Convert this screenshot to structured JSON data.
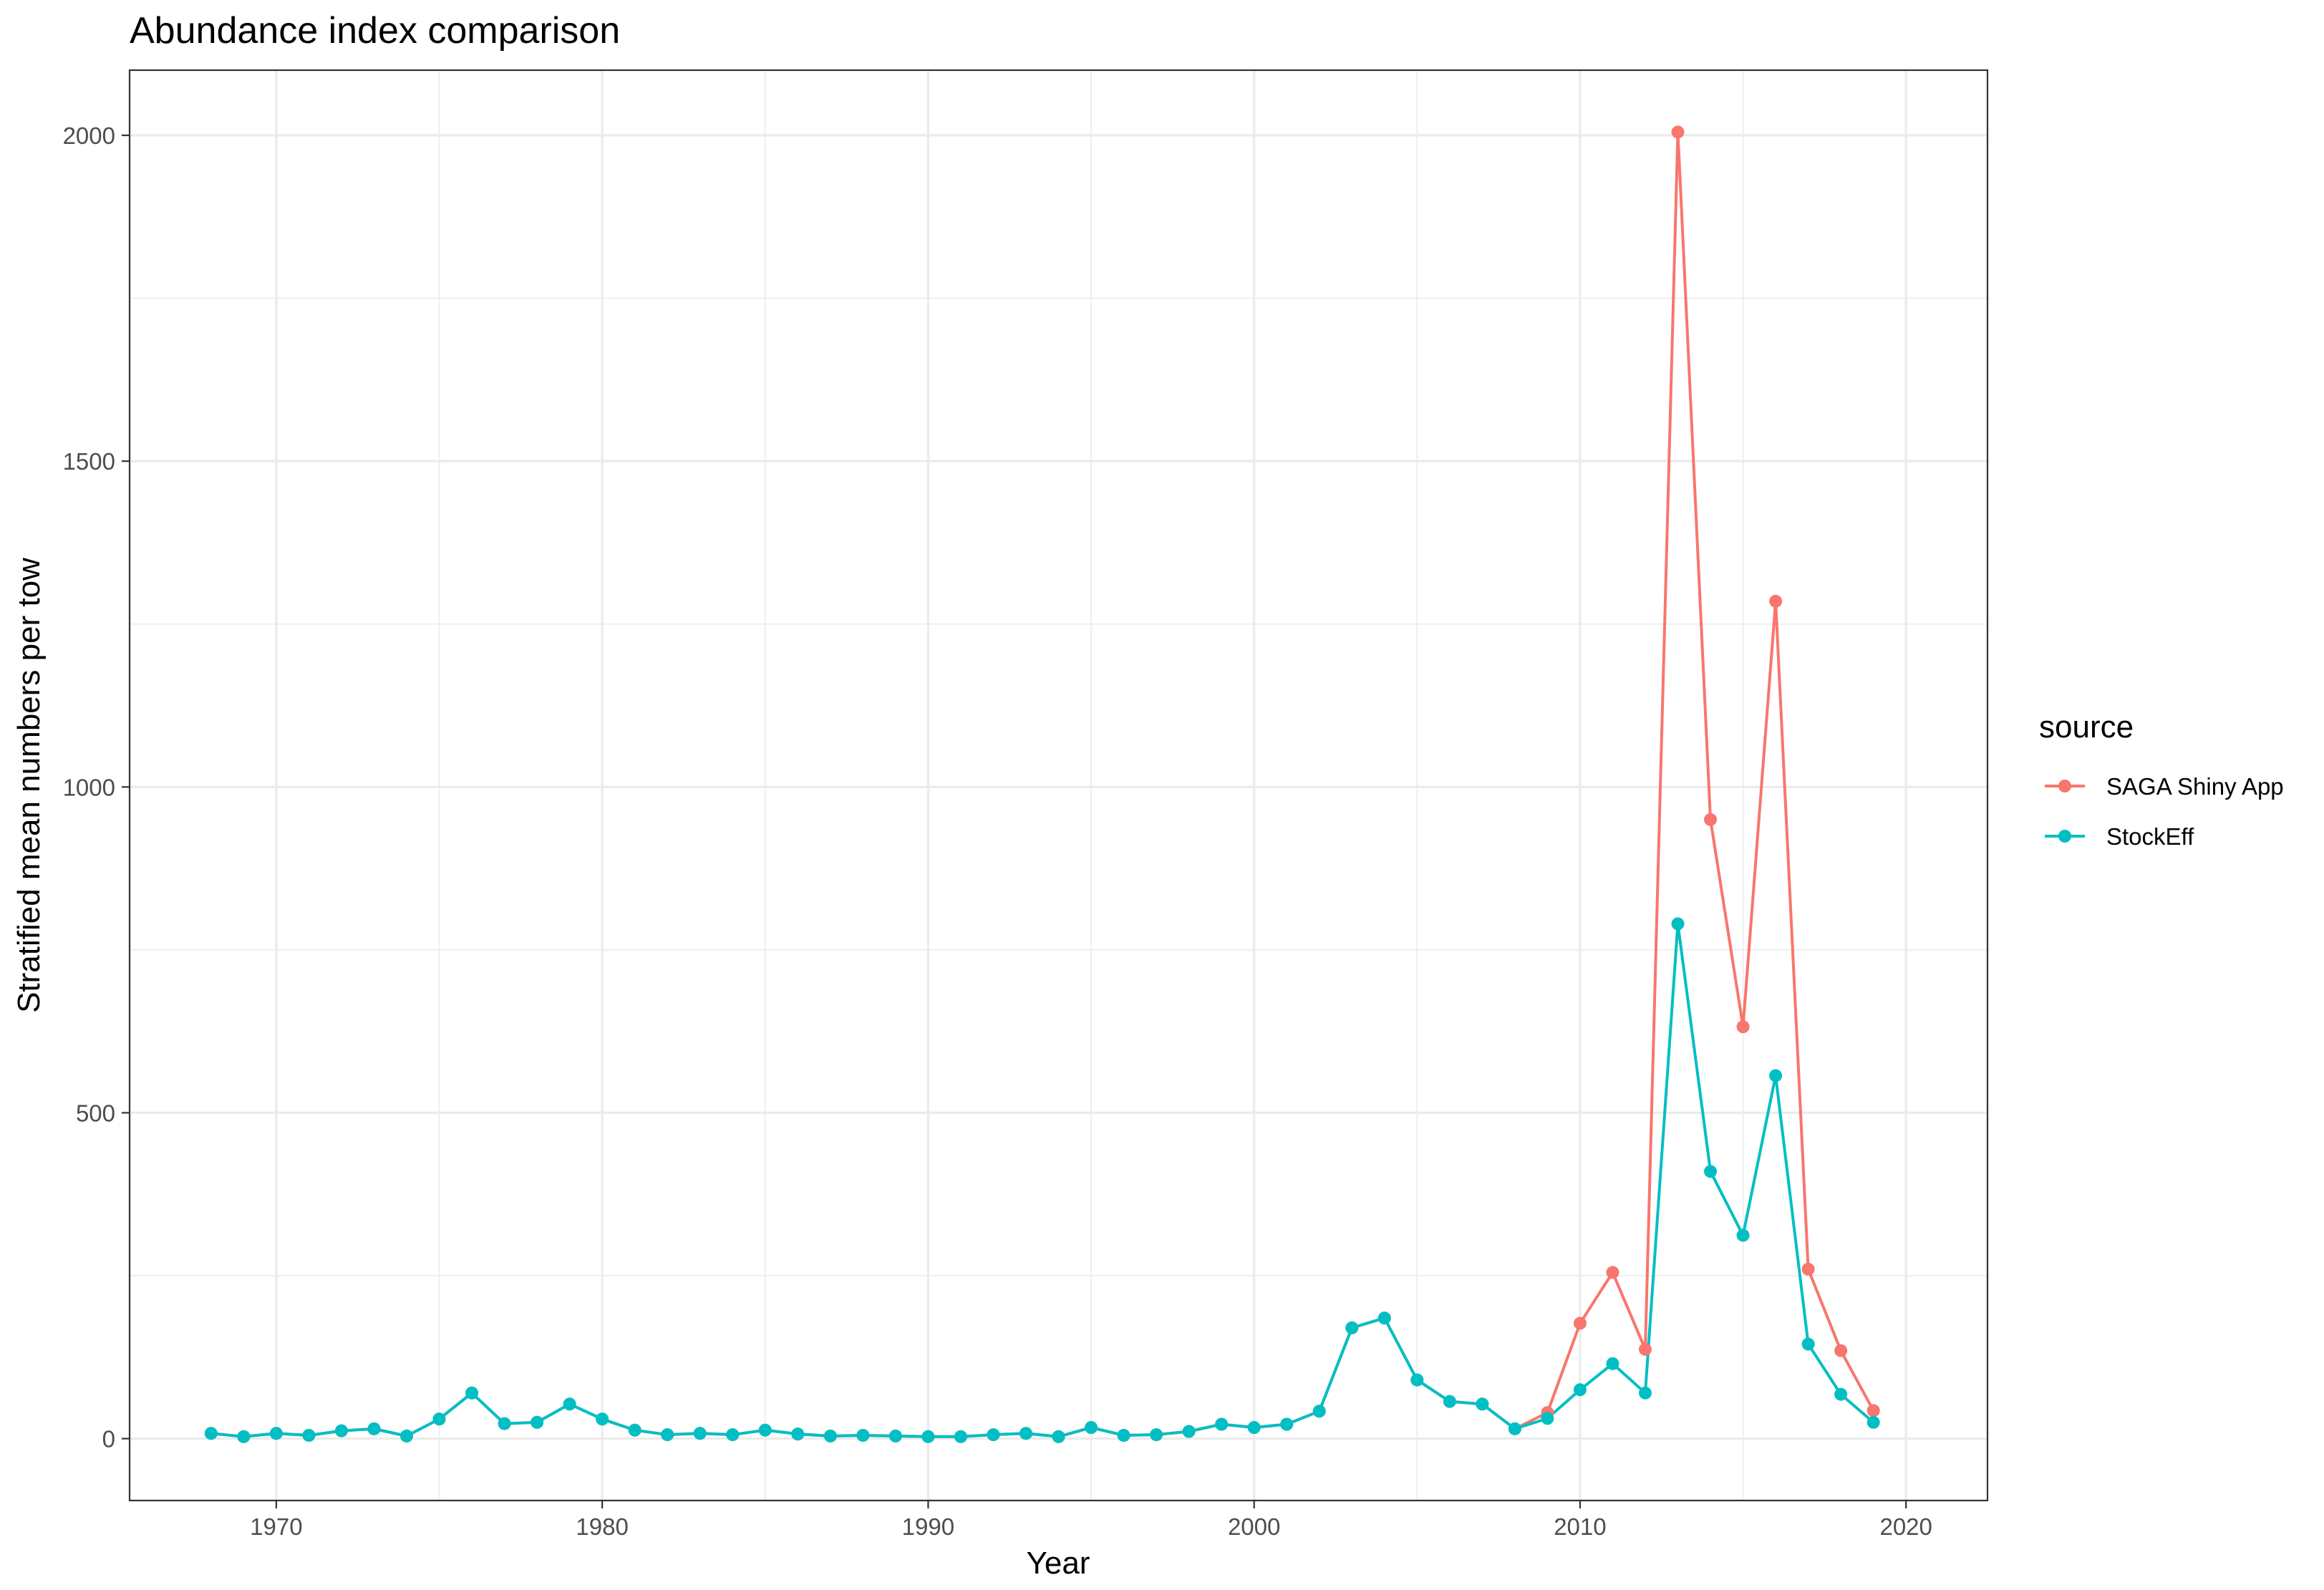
{
  "chart_data": {
    "type": "line",
    "title": "Abundance index comparison",
    "xlabel": "Year",
    "ylabel": "Stratified mean numbers per tow",
    "xlim": [
      1965.5,
      2022.5
    ],
    "ylim": [
      -95,
      2100
    ],
    "x_ticks": [
      1970,
      1980,
      1990,
      2000,
      2010,
      2020
    ],
    "y_ticks": [
      0,
      500,
      1000,
      1500,
      2000
    ],
    "x_tick_labels": [
      "1970",
      "1980",
      "1990",
      "2000",
      "2010",
      "2020"
    ],
    "y_tick_labels": [
      "0",
      "500",
      "1000",
      "1500",
      "2000"
    ],
    "grid": true,
    "legend": {
      "title": "source",
      "position": "right"
    },
    "x": [
      1968,
      1969,
      1970,
      1971,
      1972,
      1973,
      1974,
      1975,
      1976,
      1977,
      1978,
      1979,
      1980,
      1981,
      1982,
      1983,
      1984,
      1985,
      1986,
      1987,
      1988,
      1989,
      1990,
      1991,
      1992,
      1993,
      1994,
      1995,
      1996,
      1997,
      1998,
      1999,
      2000,
      2001,
      2002,
      2003,
      2004,
      2005,
      2006,
      2007,
      2008,
      2009,
      2010,
      2011,
      2012,
      2013,
      2014,
      2015,
      2016,
      2017,
      2018,
      2019
    ],
    "series": [
      {
        "name": "SAGA Shiny App",
        "color": "#F8766D",
        "values": [
          8,
          3,
          8,
          5,
          12,
          15,
          4,
          30,
          70,
          23,
          25,
          53,
          30,
          13,
          6,
          8,
          6,
          13,
          7,
          4,
          5,
          4,
          3,
          3,
          6,
          8,
          3,
          17,
          5,
          6,
          11,
          22,
          17,
          22,
          42,
          170,
          185,
          90,
          57,
          53,
          15,
          40,
          177,
          255,
          137,
          2005,
          950,
          632,
          1285,
          260,
          135,
          43
        ]
      },
      {
        "name": "StockEff",
        "color": "#00BFC4",
        "values": [
          8,
          3,
          8,
          5,
          12,
          15,
          4,
          30,
          70,
          23,
          25,
          53,
          30,
          13,
          6,
          8,
          6,
          13,
          7,
          4,
          5,
          4,
          3,
          3,
          6,
          8,
          3,
          17,
          5,
          6,
          11,
          22,
          17,
          22,
          42,
          170,
          185,
          90,
          57,
          53,
          15,
          31,
          75,
          115,
          70,
          790,
          410,
          312,
          557,
          145,
          68,
          25
        ]
      }
    ]
  }
}
